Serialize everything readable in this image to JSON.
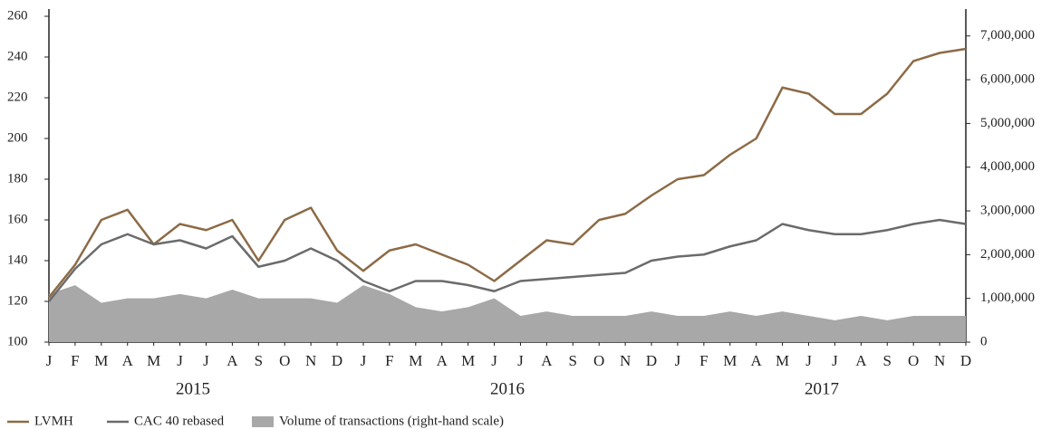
{
  "chart_data": {
    "type": "line",
    "x": [
      0,
      1,
      2,
      3,
      4,
      5,
      6,
      7,
      8,
      9,
      10,
      11,
      12,
      13,
      14,
      15,
      16,
      17,
      18,
      19,
      20,
      21,
      22,
      23,
      24,
      25,
      26,
      27,
      28,
      29,
      30,
      31,
      32,
      33,
      34,
      35
    ],
    "xlim": [
      0,
      35
    ],
    "xticks": [
      {
        "value": 0,
        "label": "J"
      },
      {
        "value": 1,
        "label": "F"
      },
      {
        "value": 2,
        "label": "M"
      },
      {
        "value": 3,
        "label": "A"
      },
      {
        "value": 4,
        "label": "M"
      },
      {
        "value": 5,
        "label": "J"
      },
      {
        "value": 6,
        "label": "J"
      },
      {
        "value": 7,
        "label": "A"
      },
      {
        "value": 8,
        "label": "S"
      },
      {
        "value": 9,
        "label": "O"
      },
      {
        "value": 10,
        "label": "N"
      },
      {
        "value": 11,
        "label": "D"
      },
      {
        "value": 12,
        "label": "J"
      },
      {
        "value": 13,
        "label": "F"
      },
      {
        "value": 14,
        "label": "M"
      },
      {
        "value": 15,
        "label": "A"
      },
      {
        "value": 16,
        "label": "M"
      },
      {
        "value": 17,
        "label": "J"
      },
      {
        "value": 18,
        "label": "J"
      },
      {
        "value": 19,
        "label": "A"
      },
      {
        "value": 20,
        "label": "S"
      },
      {
        "value": 21,
        "label": "O"
      },
      {
        "value": 22,
        "label": "N"
      },
      {
        "value": 23,
        "label": "D"
      },
      {
        "value": 24,
        "label": "J"
      },
      {
        "value": 25,
        "label": "F"
      },
      {
        "value": 26,
        "label": "M"
      },
      {
        "value": 27,
        "label": "A"
      },
      {
        "value": 28,
        "label": "M"
      },
      {
        "value": 29,
        "label": "J"
      },
      {
        "value": 30,
        "label": "J"
      },
      {
        "value": 31,
        "label": "A"
      },
      {
        "value": 32,
        "label": "S"
      },
      {
        "value": 33,
        "label": "O"
      },
      {
        "value": 34,
        "label": "N"
      },
      {
        "value": 35,
        "label": "D"
      }
    ],
    "years": [
      "2015",
      "2016",
      "2017"
    ],
    "ylim": [
      100,
      260
    ],
    "yticks": [
      100,
      120,
      140,
      160,
      180,
      200,
      220,
      240,
      260
    ],
    "y2lim": [
      0,
      7450000
    ],
    "y2ticks": [
      0,
      {
        "value": 1000000,
        "label": "1,000,000"
      },
      {
        "value": 2000000,
        "label": "2,000,000"
      },
      {
        "value": 3000000,
        "label": "3,000,000"
      },
      {
        "value": 4000000,
        "label": "4,000,000"
      },
      {
        "value": 5000000,
        "label": "5,000,000"
      },
      {
        "value": 6000000,
        "label": "6,000,000"
      },
      {
        "value": 7000000,
        "label": "7,000,000"
      }
    ],
    "legend": "bottom",
    "series": [
      {
        "name": "Volume of transactions (right-hand scale)",
        "color": "#a8a8a8",
        "axis": "y2",
        "type": "area",
        "values": [
          1100000,
          1300000,
          900000,
          1000000,
          1000000,
          1100000,
          1000000,
          1200000,
          1000000,
          1000000,
          1000000,
          900000,
          1300000,
          1100000,
          800000,
          700000,
          800000,
          1000000,
          600000,
          700000,
          600000,
          600000,
          600000,
          700000,
          600000,
          600000,
          700000,
          600000,
          700000,
          600000,
          500000,
          600000,
          500000,
          600000,
          600000,
          600000
        ]
      },
      {
        "name": "LVMH",
        "color": "#8c6b46",
        "values": [
          122,
          138,
          160,
          165,
          148,
          158,
          155,
          160,
          140,
          160,
          166,
          145,
          135,
          145,
          148,
          143,
          138,
          130,
          140,
          150,
          148,
          160,
          163,
          172,
          180,
          182,
          192,
          200,
          225,
          222,
          212,
          212,
          222,
          238,
          242,
          244
        ]
      },
      {
        "name": "CAC 40 rebased",
        "color": "#6b6b6b",
        "values": [
          120,
          136,
          148,
          153,
          148,
          150,
          146,
          152,
          137,
          140,
          146,
          140,
          130,
          125,
          130,
          130,
          128,
          125,
          130,
          131,
          132,
          133,
          134,
          140,
          142,
          143,
          147,
          150,
          158,
          155,
          153,
          153,
          155,
          158,
          160,
          158
        ]
      }
    ]
  }
}
